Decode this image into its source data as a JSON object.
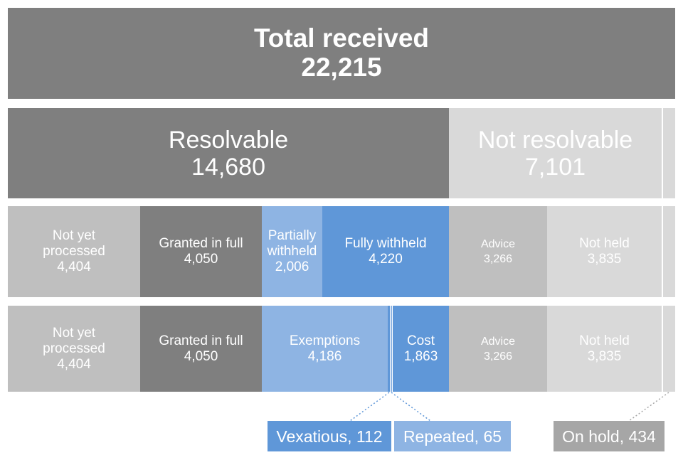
{
  "total": {
    "label": "Total received",
    "value": "22,215"
  },
  "resolvable": {
    "label": "Resolvable",
    "value": "14,680"
  },
  "not_resolvable": {
    "label": "Not resolvable",
    "value": "7,101"
  },
  "row3": {
    "not_yet_processed": {
      "label": "Not yet processed",
      "value": "4,404"
    },
    "granted_in_full": {
      "label": "Granted in full",
      "value": "4,050"
    },
    "partially_withheld": {
      "label": "Partially withheld",
      "value": "2,006"
    },
    "fully_withheld": {
      "label": "Fully withheld",
      "value": "4,220"
    },
    "advice": {
      "label": "Advice",
      "value": "3,266"
    },
    "not_held": {
      "label": "Not held",
      "value": "3,835"
    }
  },
  "row4": {
    "not_yet_processed": {
      "label": "Not yet processed",
      "value": "4,404"
    },
    "granted_in_full": {
      "label": "Granted in full",
      "value": "4,050"
    },
    "exemptions": {
      "label": "Exemptions",
      "value": "4,186"
    },
    "cost": {
      "label": "Cost",
      "value": "1,863"
    },
    "advice": {
      "label": "Advice",
      "value": "3,266"
    },
    "not_held": {
      "label": "Not held",
      "value": "3,835"
    }
  },
  "callouts": {
    "vexatious": "Vexatious, 112",
    "repeated": "Repeated, 65",
    "on_hold": "On hold, 434"
  },
  "colors": {
    "dark_grey": "#7f7f7f",
    "mid_grey": "#bfbfbf",
    "light_grey": "#d9d9d9",
    "light_blue": "#8eb4e3",
    "blue": "#5f97d8"
  }
}
